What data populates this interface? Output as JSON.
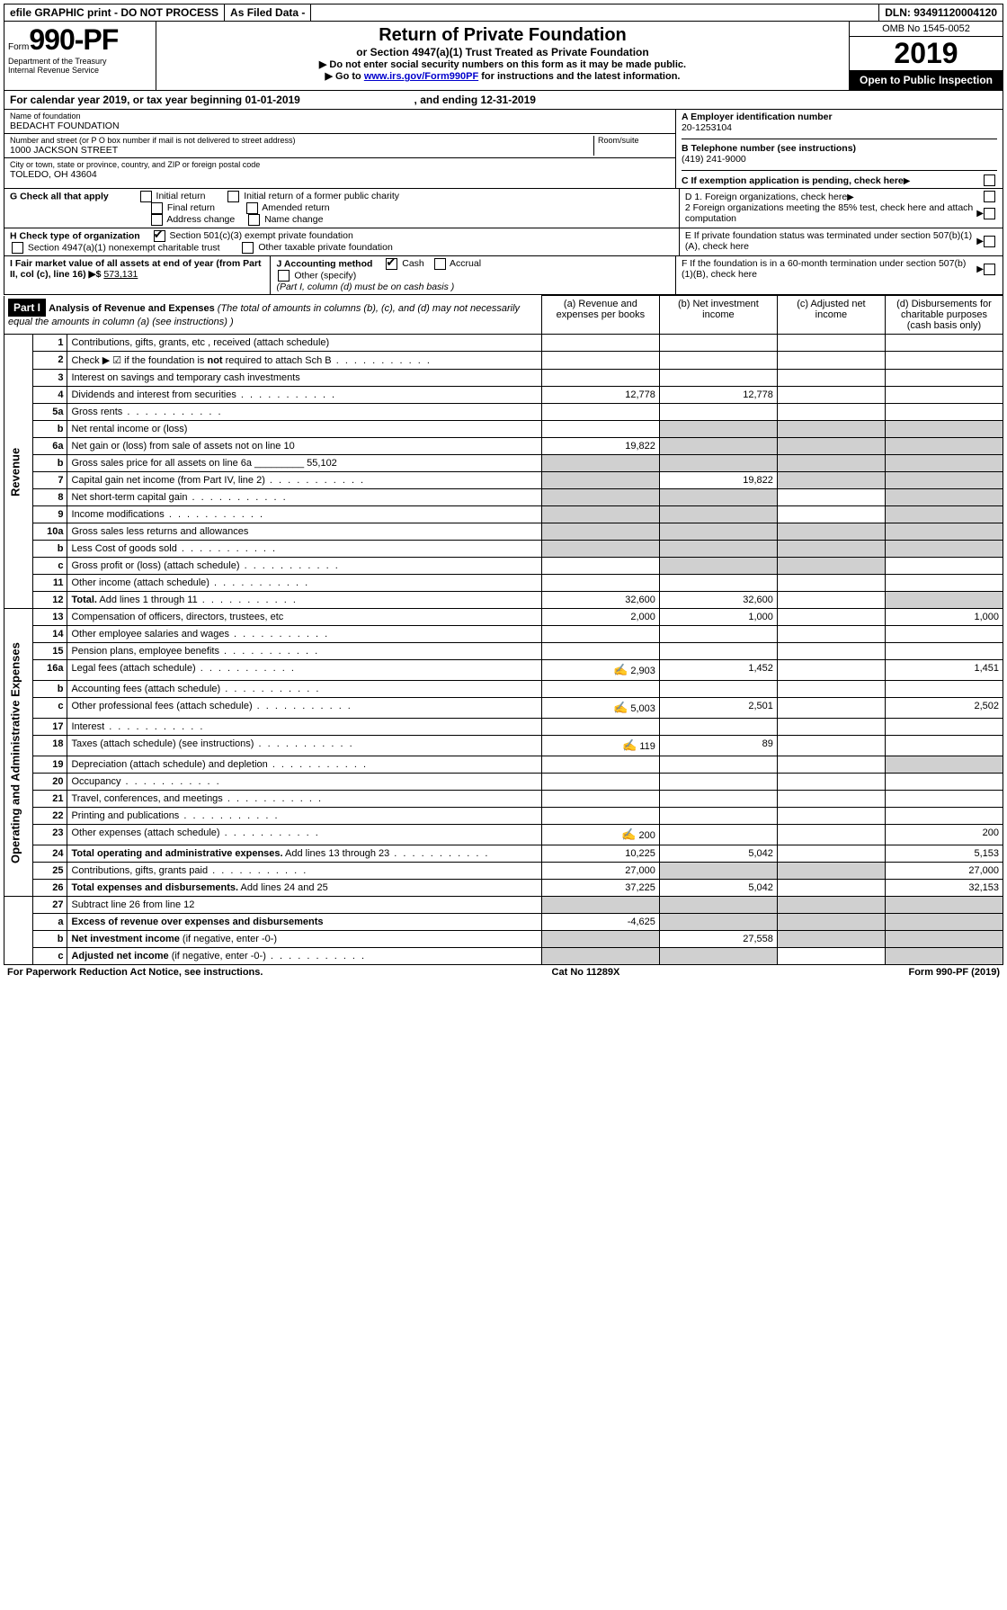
{
  "topbar": {
    "efile": "efile GRAPHIC print - DO NOT PROCESS",
    "asfiled": "As Filed Data -",
    "dln_label": "DLN:",
    "dln": "93491120004120"
  },
  "header": {
    "form_prefix": "Form",
    "form_no": "990-PF",
    "dept1": "Department of the Treasury",
    "dept2": "Internal Revenue Service",
    "title": "Return of Private Foundation",
    "subtitle": "or Section 4947(a)(1) Trust Treated as Private Foundation",
    "note1": "▶ Do not enter social security numbers on this form as it may be made public.",
    "note2": "▶ Go to ",
    "note2_link": "www.irs.gov/Form990PF",
    "note2_tail": " for instructions and the latest information.",
    "omb": "OMB No 1545-0052",
    "year": "2019",
    "inspect": "Open to Public Inspection"
  },
  "calrow": {
    "text_a": "For calendar year 2019, or tax year beginning ",
    "begin": "01-01-2019",
    "text_b": ", and ending ",
    "end": "12-31-2019"
  },
  "ident": {
    "name_lbl": "Name of foundation",
    "name": "BEDACHT FOUNDATION",
    "addr_lbl": "Number and street (or P O  box number if mail is not delivered to street address)",
    "addr": "1000 JACKSON STREET",
    "room_lbl": "Room/suite",
    "city_lbl": "City or town, state or province, country, and ZIP or foreign postal code",
    "city": "TOLEDO, OH  43604",
    "a_lbl": "A Employer identification number",
    "a_val": "20-1253104",
    "b_lbl": "B Telephone number (see instructions)",
    "b_val": "(419) 241-9000",
    "c_lbl": "C If exemption application is pending, check here"
  },
  "g": {
    "lbl": "G Check all that apply",
    "o1": "Initial return",
    "o2": "Initial return of a former public charity",
    "o3": "Final return",
    "o4": "Amended return",
    "o5": "Address change",
    "o6": "Name change"
  },
  "h": {
    "lbl": "H Check type of organization",
    "o1": "Section 501(c)(3) exempt private foundation",
    "o2": "Section 4947(a)(1) nonexempt charitable trust",
    "o3": "Other taxable private foundation"
  },
  "i": {
    "lbl": "I Fair market value of all assets at end of year (from Part II, col  (c), line 16) ▶$ ",
    "val": "573,131"
  },
  "j": {
    "lbl": "J Accounting method",
    "o1": "Cash",
    "o2": "Accrual",
    "o3": "Other (specify)",
    "note": "(Part I, column (d) must be on cash basis )"
  },
  "d": {
    "d1": "D 1. Foreign organizations, check here",
    "d2a": "2 Foreign organizations meeting the 85% test, check here and attach computation",
    "e": "E  If private foundation status was terminated under section 507(b)(1)(A), check here",
    "f": "F  If the foundation is in a 60-month termination under section 507(b)(1)(B), check here"
  },
  "part1": {
    "label": "Part I",
    "title": "Analysis of Revenue and Expenses",
    "note": "(The total of amounts in columns (b), (c), and (d) may not necessarily equal the amounts in column (a) (see instructions) )",
    "col_a": "(a) Revenue and expenses per books",
    "col_b": "(b) Net investment income",
    "col_c": "(c) Adjusted net income",
    "col_d": "(d) Disbursements for charitable purposes (cash basis only)",
    "rev_label": "Revenue",
    "exp_label": "Operating and Administrative Expenses"
  },
  "rows": [
    {
      "n": "1",
      "d": "Contributions, gifts, grants, etc , received (attach schedule)"
    },
    {
      "n": "2",
      "d": "Check ▶ ☑ if the foundation is <b>not</b> required to attach Sch  B",
      "dots": true
    },
    {
      "n": "3",
      "d": "Interest on savings and temporary cash investments"
    },
    {
      "n": "4",
      "d": "Dividends and interest from securities",
      "dots": true,
      "a": "12,778",
      "b": "12,778"
    },
    {
      "n": "5a",
      "d": "Gross rents",
      "dots": true
    },
    {
      "n": "b",
      "d": "Net rental income or (loss)",
      "shade_bcd": true
    },
    {
      "n": "6a",
      "d": "Net gain or (loss) from sale of assets not on line 10",
      "a": "19,822",
      "shade_bcd": true
    },
    {
      "n": "b",
      "d": "Gross sales price for all assets on line 6a _________ 55,102",
      "shade_all": true
    },
    {
      "n": "7",
      "d": "Capital gain net income (from Part IV, line 2)",
      "dots": true,
      "b": "19,822",
      "shade_a": true,
      "shade_cd": true
    },
    {
      "n": "8",
      "d": "Net short-term capital gain",
      "dots": true,
      "shade_ab": true,
      "shade_d": true
    },
    {
      "n": "9",
      "d": "Income modifications",
      "dots": true,
      "shade_ab": true,
      "shade_d": true
    },
    {
      "n": "10a",
      "d": "Gross sales less returns and allowances",
      "shade_all": true
    },
    {
      "n": "b",
      "d": "Less  Cost of goods sold",
      "dots": true,
      "shade_all": true
    },
    {
      "n": "c",
      "d": "Gross profit or (loss) (attach schedule)",
      "dots": true,
      "shade_bc": true
    },
    {
      "n": "11",
      "d": "Other income (attach schedule)",
      "dots": true
    },
    {
      "n": "12",
      "d": "<b>Total.</b> Add lines 1 through 11",
      "dots": true,
      "a": "32,600",
      "b": "32,600",
      "shade_d": true
    }
  ],
  "exp_rows": [
    {
      "n": "13",
      "d": "Compensation of officers, directors, trustees, etc",
      "a": "2,000",
      "b": "1,000",
      "dd": "1,000"
    },
    {
      "n": "14",
      "d": "Other employee salaries and wages",
      "dots": true
    },
    {
      "n": "15",
      "d": "Pension plans, employee benefits",
      "dots": true
    },
    {
      "n": "16a",
      "d": "Legal fees (attach schedule)",
      "dots": true,
      "pen": true,
      "a": "2,903",
      "b": "1,452",
      "dd": "1,451"
    },
    {
      "n": "b",
      "d": "Accounting fees (attach schedule)",
      "dots": true
    },
    {
      "n": "c",
      "d": "Other professional fees (attach schedule)",
      "dots": true,
      "pen": true,
      "a": "5,003",
      "b": "2,501",
      "dd": "2,502"
    },
    {
      "n": "17",
      "d": "Interest",
      "dots": true
    },
    {
      "n": "18",
      "d": "Taxes (attach schedule) (see instructions)",
      "dots": true,
      "pen": true,
      "a": "119",
      "b": "89"
    },
    {
      "n": "19",
      "d": "Depreciation (attach schedule) and depletion",
      "dots": true,
      "shade_d": true
    },
    {
      "n": "20",
      "d": "Occupancy",
      "dots": true
    },
    {
      "n": "21",
      "d": "Travel, conferences, and meetings",
      "dots": true
    },
    {
      "n": "22",
      "d": "Printing and publications",
      "dots": true
    },
    {
      "n": "23",
      "d": "Other expenses (attach schedule)",
      "dots": true,
      "pen": true,
      "a": "200",
      "dd": "200"
    },
    {
      "n": "24",
      "d": "<b>Total operating and administrative expenses.</b> Add lines 13 through 23",
      "dots": true,
      "a": "10,225",
      "b": "5,042",
      "dd": "5,153"
    },
    {
      "n": "25",
      "d": "Contributions, gifts, grants paid",
      "dots": true,
      "a": "27,000",
      "shade_bc": true,
      "dd": "27,000"
    },
    {
      "n": "26",
      "d": "<b>Total expenses and disbursements.</b> Add lines 24 and 25",
      "a": "37,225",
      "b": "5,042",
      "dd": "32,153"
    }
  ],
  "net_rows": [
    {
      "n": "27",
      "d": "Subtract line 26 from line 12",
      "shade_all": true
    },
    {
      "n": "a",
      "d": "<b>Excess of revenue over expenses and disbursements</b>",
      "a": "-4,625",
      "shade_bcd": true
    },
    {
      "n": "b",
      "d": "<b>Net investment income</b> (if negative, enter -0-)",
      "b": "27,558",
      "shade_a": true,
      "shade_cd": true
    },
    {
      "n": "c",
      "d": "<b>Adjusted net income</b> (if negative, enter -0-)",
      "dots": true,
      "shade_ab": true,
      "shade_d": true
    }
  ],
  "footer": {
    "left": "For Paperwork Reduction Act Notice, see instructions.",
    "mid": "Cat  No  11289X",
    "right": "Form 990-PF (2019)"
  }
}
